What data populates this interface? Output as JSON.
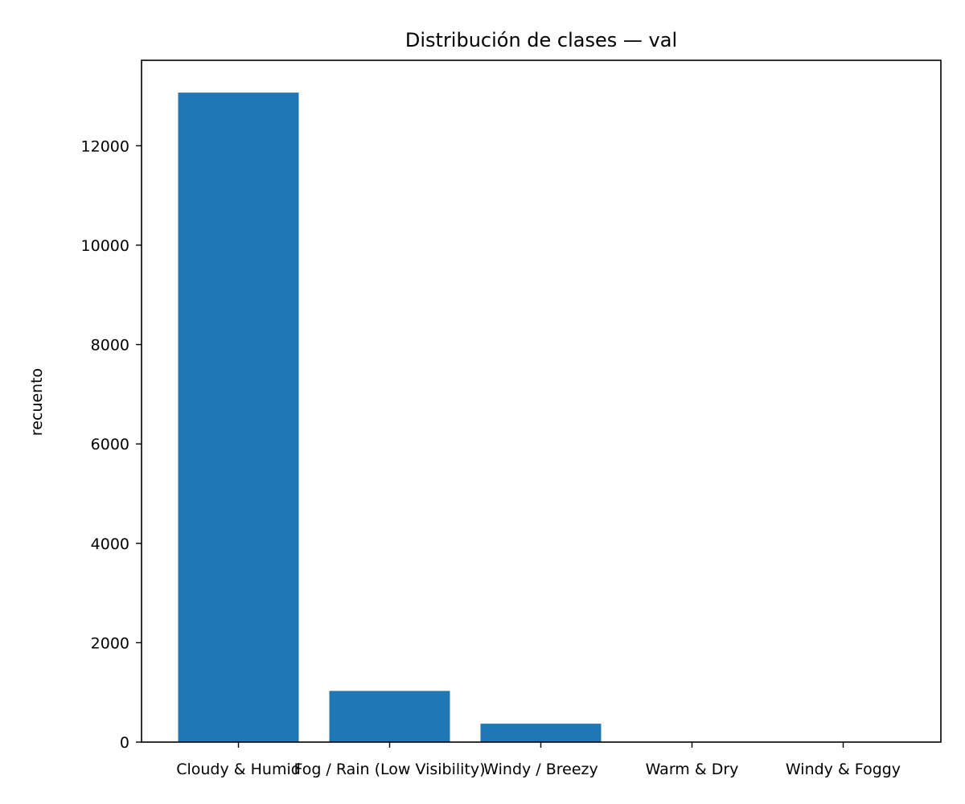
{
  "chart_data": {
    "type": "bar",
    "title": "Distribución de clases — val",
    "xlabel": "",
    "ylabel": "recuento",
    "categories": [
      "Cloudy & Humid",
      "Fog / Rain (Low Visibility)",
      "Windy / Breezy",
      "Warm & Dry",
      "Windy & Foggy"
    ],
    "values": [
      13070,
      1030,
      370,
      0,
      0
    ],
    "ylim": [
      0,
      13720
    ],
    "yticks": [
      0,
      2000,
      4000,
      6000,
      8000,
      10000,
      12000
    ],
    "bar_color": "#1f77b4",
    "grid": false,
    "legend": false
  }
}
